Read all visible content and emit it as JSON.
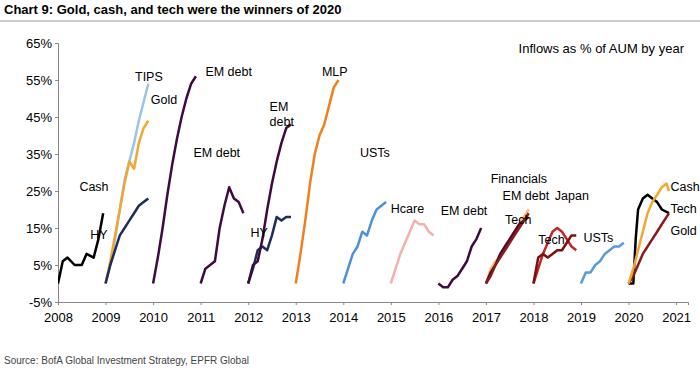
{
  "chart_data": {
    "type": "line",
    "title": "Chart 9: Gold, cash, and tech were the winners of 2020",
    "annotation": "Inflows as % of AUM by year",
    "source": "Source: BofA Global Investment Strategy, EPFR Global",
    "xlim": [
      2008,
      2021.25
    ],
    "xticks": [
      2008,
      2009,
      2010,
      2011,
      2012,
      2013,
      2014,
      2015,
      2016,
      2017,
      2018,
      2019,
      2020,
      2021
    ],
    "ylim": [
      -5,
      65
    ],
    "yticks": [
      {
        "value": -5,
        "label": "-5%"
      },
      {
        "value": 5,
        "label": "5%"
      },
      {
        "value": 15,
        "label": "15%"
      },
      {
        "value": 25,
        "label": "25%"
      },
      {
        "value": 35,
        "label": "35%"
      },
      {
        "value": 45,
        "label": "45%"
      },
      {
        "value": 55,
        "label": "55%"
      },
      {
        "value": 65,
        "label": "65%"
      }
    ],
    "grid": false,
    "series": [
      {
        "name": "Cash",
        "color": "#000000",
        "x": [
          2008,
          2008.1,
          2008.2,
          2008.35,
          2008.5,
          2008.6,
          2008.75,
          2008.85,
          2008.95
        ],
        "values": [
          0,
          6,
          7,
          5,
          5,
          8,
          7,
          12,
          19
        ]
      },
      {
        "name": "TIPS",
        "color": "#9dc3e6",
        "x": [
          2009,
          2009.1,
          2009.2,
          2009.3,
          2009.4,
          2009.5,
          2009.6,
          2009.7,
          2009.8,
          2009.9
        ],
        "values": [
          0,
          5,
          12,
          20,
          28,
          33,
          38,
          44,
          49,
          54
        ]
      },
      {
        "name": "Gold",
        "color": "#f0a830",
        "x": [
          2009,
          2009.1,
          2009.2,
          2009.3,
          2009.4,
          2009.5,
          2009.6,
          2009.7,
          2009.8,
          2009.9
        ],
        "values": [
          0,
          6,
          13,
          20,
          27,
          33,
          31,
          38,
          42,
          44
        ]
      },
      {
        "name": "HY",
        "color": "#1f2d5c",
        "x": [
          2009,
          2009.1,
          2009.2,
          2009.3,
          2009.4,
          2009.5,
          2009.6,
          2009.7,
          2009.8,
          2009.9
        ],
        "values": [
          0,
          5,
          9,
          13,
          15,
          17,
          19,
          21,
          22,
          23
        ]
      },
      {
        "name": "EM debt",
        "color": "#3d0b3d",
        "x": [
          2010,
          2010.1,
          2010.2,
          2010.3,
          2010.4,
          2010.5,
          2010.6,
          2010.7,
          2010.8,
          2010.9
        ],
        "values": [
          0,
          7,
          15,
          24,
          32,
          39,
          45,
          50,
          54,
          56
        ]
      },
      {
        "name": "EM debt",
        "color": "#3d0b3d",
        "x": [
          2011,
          2011.1,
          2011.2,
          2011.3,
          2011.4,
          2011.5,
          2011.6,
          2011.7,
          2011.8,
          2011.9
        ],
        "values": [
          0,
          4,
          5,
          6,
          15,
          21,
          26,
          23,
          22,
          19
        ]
      },
      {
        "name": "HY",
        "color": "#1f2d5c",
        "x": [
          2012,
          2012.1,
          2012.2,
          2012.3,
          2012.4,
          2012.5,
          2012.6,
          2012.7,
          2012.8,
          2012.9
        ],
        "values": [
          0,
          4,
          9,
          10,
          9,
          13,
          18,
          17,
          18,
          18
        ]
      },
      {
        "name": "EM debt",
        "color": "#3d0b3d",
        "x": [
          2012,
          2012.1,
          2012.2,
          2012.3,
          2012.4,
          2012.5,
          2012.6,
          2012.7,
          2012.8,
          2012.9
        ],
        "values": [
          0,
          5,
          6,
          12,
          20,
          27,
          33,
          38,
          42,
          43
        ]
      },
      {
        "name": "MLP",
        "color": "#f07f1e",
        "x": [
          2013,
          2013.1,
          2013.2,
          2013.3,
          2013.4,
          2013.5,
          2013.6,
          2013.7,
          2013.8,
          2013.9
        ],
        "values": [
          0,
          8,
          17,
          27,
          35,
          40,
          43,
          48,
          53,
          55
        ]
      },
      {
        "name": "USTs",
        "color": "#4f8fdc",
        "x": [
          2014,
          2014.1,
          2014.2,
          2014.3,
          2014.4,
          2014.5,
          2014.6,
          2014.7,
          2014.8,
          2014.9
        ],
        "values": [
          0,
          4,
          8,
          10,
          14,
          13,
          17,
          20,
          21,
          22
        ]
      },
      {
        "name": "Hcare",
        "color": "#f4b0b0",
        "x": [
          2015,
          2015.1,
          2015.2,
          2015.3,
          2015.4,
          2015.5,
          2015.6,
          2015.7,
          2015.8,
          2015.9
        ],
        "values": [
          0,
          4,
          8,
          11,
          14,
          17,
          16,
          16,
          14,
          13
        ]
      },
      {
        "name": "EM debt",
        "color": "#3d0b3d",
        "x": [
          2016,
          2016.1,
          2016.2,
          2016.3,
          2016.4,
          2016.5,
          2016.6,
          2016.7,
          2016.8,
          2016.9
        ],
        "values": [
          0,
          -1,
          -1,
          1,
          2,
          4,
          6,
          10,
          12,
          15
        ]
      },
      {
        "name": "Financials",
        "color": "#f5c07a",
        "x": [
          2017,
          2017.1,
          2017.2,
          2017.3,
          2017.4,
          2017.5,
          2017.6,
          2017.7,
          2017.8,
          2017.9
        ],
        "values": [
          0,
          4,
          6,
          7,
          10,
          12,
          14,
          16,
          18,
          20
        ]
      },
      {
        "name": "EM debt",
        "color": "#4a0a30",
        "x": [
          2017,
          2017.1,
          2017.2,
          2017.3,
          2017.4,
          2017.5,
          2017.6,
          2017.7,
          2017.8,
          2017.9
        ],
        "values": [
          0,
          3,
          5,
          8,
          10,
          12,
          14,
          16,
          17,
          18
        ]
      },
      {
        "name": "Tech",
        "color": "#8b1a1a",
        "x": [
          2017,
          2017.1,
          2017.2,
          2017.3,
          2017.4,
          2017.5,
          2017.6,
          2017.7,
          2017.8,
          2017.9
        ],
        "values": [
          0,
          2,
          5,
          7,
          9,
          11,
          13,
          15,
          17,
          19
        ]
      },
      {
        "name": "Japan",
        "color": "#c0282a",
        "x": [
          2018,
          2018.1,
          2018.2,
          2018.3,
          2018.4,
          2018.5,
          2018.6,
          2018.7,
          2018.8,
          2018.9
        ],
        "values": [
          0,
          4,
          8,
          11,
          14,
          15,
          14,
          12,
          10,
          9
        ]
      },
      {
        "name": "Tech",
        "color": "#7a1010",
        "x": [
          2018,
          2018.1,
          2018.2,
          2018.3,
          2018.4,
          2018.5,
          2018.6,
          2018.7,
          2018.8,
          2018.9
        ],
        "values": [
          0,
          7,
          8,
          7,
          8,
          9,
          9,
          11,
          13,
          13
        ]
      },
      {
        "name": "USTs",
        "color": "#5b9bd5",
        "x": [
          2019,
          2019.1,
          2019.2,
          2019.3,
          2019.4,
          2019.5,
          2019.6,
          2019.7,
          2019.8,
          2019.9
        ],
        "values": [
          0,
          3,
          3,
          5,
          6,
          8,
          9,
          10,
          10,
          11
        ]
      },
      {
        "name": "Cash",
        "color": "#000000",
        "x": [
          2020,
          2020.1,
          2020.15,
          2020.2,
          2020.3,
          2020.4,
          2020.5,
          2020.6,
          2020.7,
          2020.85
        ],
        "values": [
          0,
          0,
          12,
          20,
          23,
          24,
          23,
          22,
          20,
          19
        ]
      },
      {
        "name": "Tech",
        "color": "#8b1a1a",
        "x": [
          2020,
          2020.1,
          2020.2,
          2020.3,
          2020.4,
          2020.5,
          2020.6,
          2020.7,
          2020.8,
          2020.85
        ],
        "values": [
          0,
          2,
          5,
          8,
          10,
          12,
          14,
          16,
          18,
          19
        ]
      },
      {
        "name": "Gold",
        "color": "#f0a830",
        "x": [
          2020,
          2020.1,
          2020.2,
          2020.3,
          2020.4,
          2020.5,
          2020.6,
          2020.7,
          2020.8,
          2020.85
        ],
        "values": [
          0,
          4,
          9,
          14,
          19,
          22,
          24,
          26,
          27,
          25
        ]
      }
    ]
  }
}
